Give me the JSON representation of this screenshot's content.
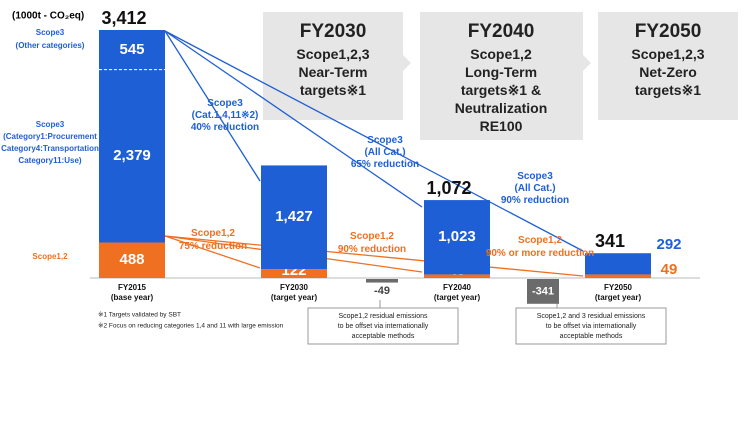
{
  "chart_data": {
    "type": "bar",
    "unit": "(1000t - CO₂eq)",
    "categories": [
      "FY2015",
      "FY2030",
      "FY2040",
      "FY2050"
    ],
    "category_notes": [
      "(base year)",
      "(target year)",
      "(target year)",
      "(target year)"
    ],
    "ylim": [
      0,
      3412
    ],
    "series": [
      {
        "name": [
          "Scope1,2"
        ],
        "color": "#f07021",
        "values": [
          488,
          122,
          49,
          49
        ]
      },
      {
        "name": [
          "Scope3",
          "(Category1:Procurement",
          "Category4:Transportation",
          "Category11:Use)"
        ],
        "color": "#1f5fd6",
        "values": [
          2379,
          1427,
          1023,
          292
        ],
        "value_labels": [
          "2,379",
          "1,427",
          "1,023",
          "292"
        ]
      },
      {
        "name": [
          "Scope3",
          "(Other categories)"
        ],
        "color": "#1f5fd6",
        "values": [
          545,
          null,
          null,
          null
        ]
      }
    ],
    "totals": {
      "values": [
        3412,
        null,
        1072,
        341
      ],
      "value_labels": [
        "3,412",
        null,
        "1,072",
        "341"
      ]
    },
    "offsets": {
      "color": "#6b6b6b",
      "values": [
        null,
        null,
        -49,
        -341
      ]
    },
    "offset_notes": [
      [
        "Scope1,2 residual emissions",
        "to be offset via internationally",
        "acceptable methods"
      ],
      [
        "Scope1,2 and 3 residual emissions",
        "to be offset via internationally",
        "acceptable methods"
      ]
    ],
    "targets": [
      {
        "year": "FY2030",
        "lines": [
          "Scope1,2,3",
          "Near-Term",
          "targets※1"
        ]
      },
      {
        "year": "FY2040",
        "lines": [
          "Scope1,2",
          "Long-Term",
          "targets※1 &",
          "Neutralization",
          "RE100"
        ]
      },
      {
        "year": "FY2050",
        "lines": [
          "Scope1,2,3",
          "Net-Zero",
          "targets※1"
        ]
      }
    ],
    "scope3_reductions": [
      [
        "Scope3",
        "(Cat.1,4,11※2)",
        "40% reduction"
      ],
      [
        "Scope3",
        "(All Cat.)",
        "65% reduction"
      ],
      [
        "Scope3",
        "(All Cat.)",
        "90% reduction"
      ]
    ],
    "scope12_reductions": [
      [
        "Scope1,2",
        "75% reduction"
      ],
      [
        "Scope1,2",
        "90% reduction"
      ],
      [
        "Scope1,2",
        "90% or more reduction"
      ]
    ],
    "footnotes": [
      "※1 Targets validated by SBT",
      "※2 Focus on reducing categories 1,4 and 11 with large emission"
    ]
  }
}
